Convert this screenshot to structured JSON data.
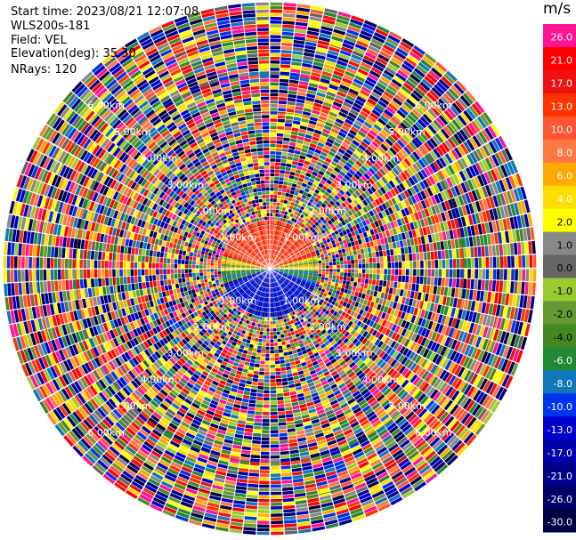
{
  "header": {
    "start_time": "Start time: 2023/08/21 12:07:08",
    "site": "WLS200s-181",
    "field": "Field: VEL",
    "elevation": "Elevation(deg): 35.30",
    "nrays": "NRays: 120"
  },
  "chart_data": {
    "type": "heatmap",
    "projection": "polar PPI",
    "field": "VEL",
    "units": "m/s",
    "nrays": 120,
    "range_ring_labels": [
      "0.00km",
      "1.00km",
      "2.00km",
      "3.00km",
      "4.00km",
      "5.00km",
      "6.00km"
    ],
    "colorbar": {
      "label": "m/s",
      "ticks": [
        "26.0",
        "21.0",
        "17.0",
        "13.0",
        "10.0",
        "8.0",
        "6.0",
        "4.0",
        "2.0",
        "1.0",
        "0.0",
        "-1.0",
        "-2.0",
        "-4.0",
        "-6.0",
        "-8.0",
        "-10.0",
        "-13.0",
        "-17.0",
        "-21.0",
        "-26.0",
        "-30.0"
      ],
      "colors": [
        "#ff1493",
        "#ff0000",
        "#ee1111",
        "#ff3300",
        "#ff5533",
        "#ff7744",
        "#ffaa00",
        "#ffdd00",
        "#ffff00",
        "#888888",
        "#666666",
        "#99cc33",
        "#669933",
        "#448822",
        "#228833",
        "#1177bb",
        "#0033ee",
        "#0000cc",
        "#0000aa",
        "#000088",
        "#000066",
        "#000044"
      ]
    },
    "inner_disk_pattern": "red/orange upper half, green band across middle, blue lower half"
  }
}
